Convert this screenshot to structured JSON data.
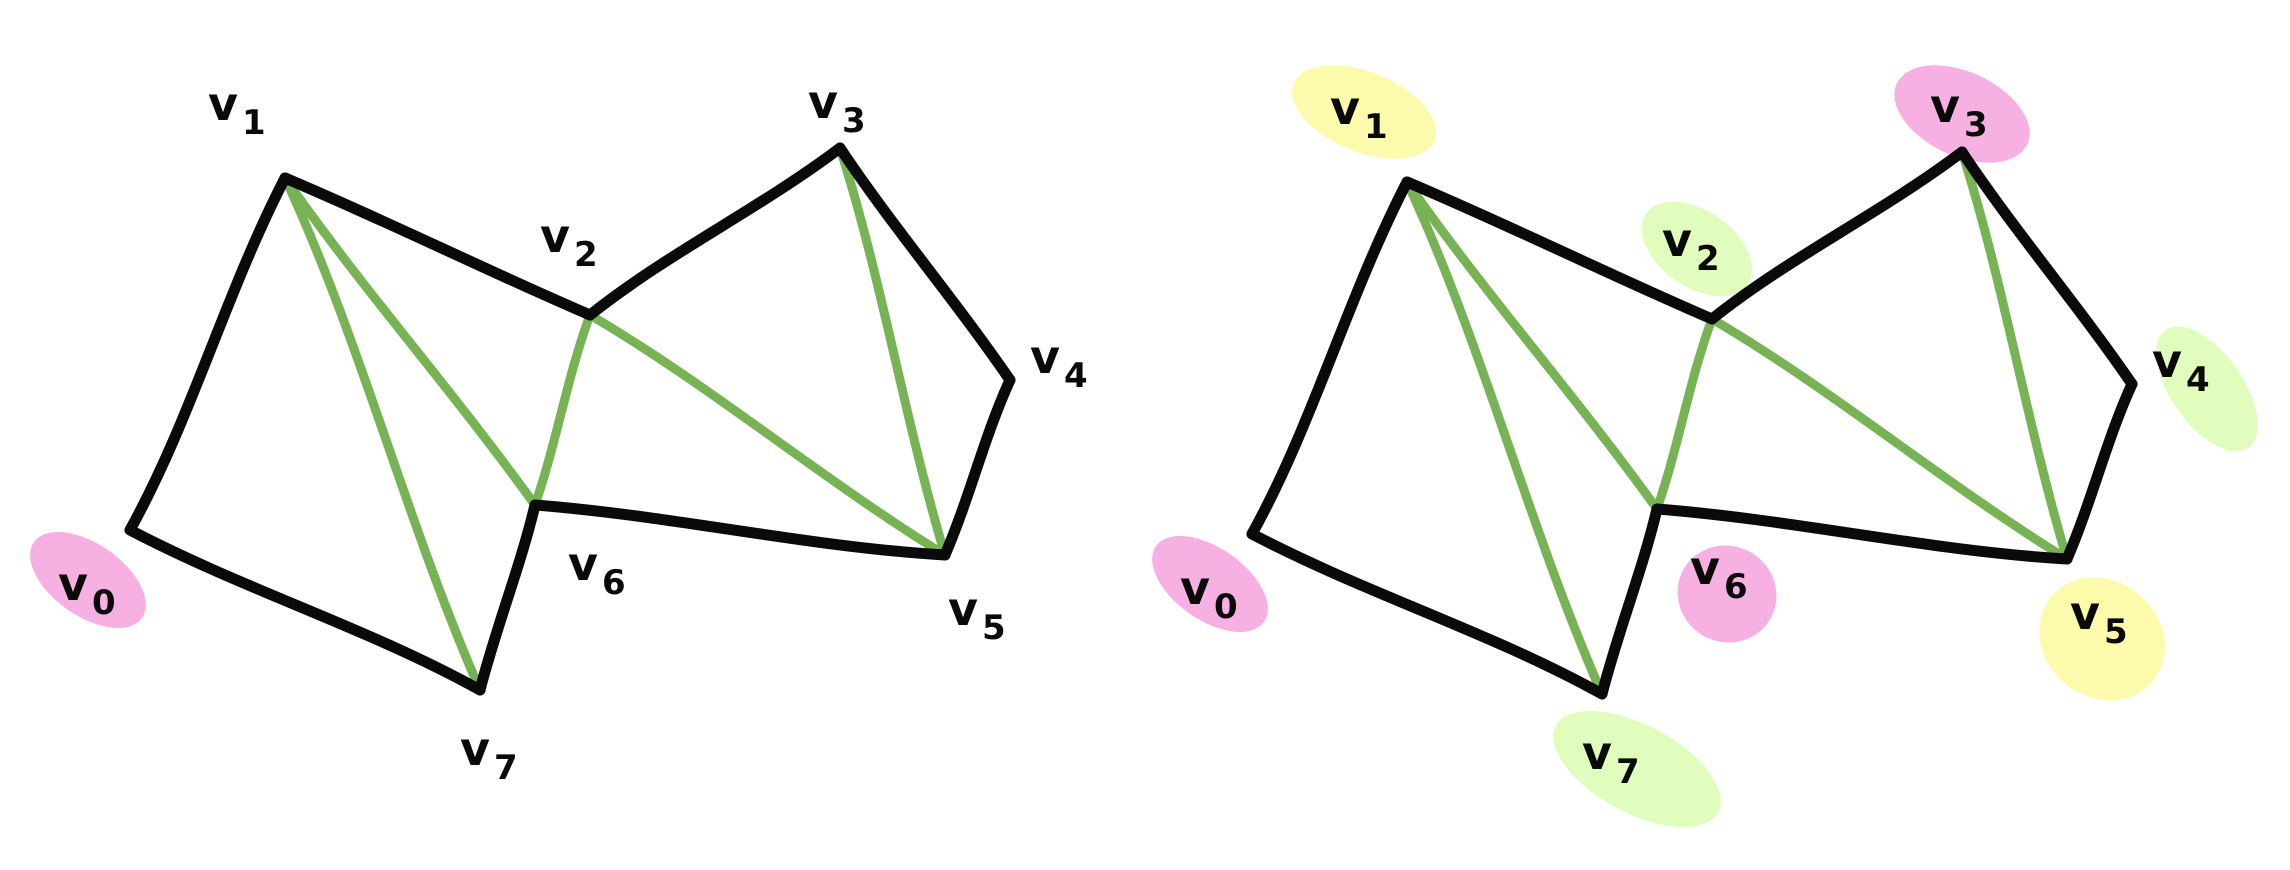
{
  "colors": {
    "outer_edge": "#0a0a0a",
    "inner_edge": "#77b255",
    "highlight_pink": "#f4a3dd",
    "highlight_yellow": "#fbfa9c",
    "highlight_green": "#dcfdb2"
  },
  "graphs": [
    {
      "id": "uncolored",
      "vertices": [
        {
          "letter": "v",
          "sub": "0",
          "highlight": "pink"
        },
        {
          "letter": "v",
          "sub": "1",
          "highlight": "none"
        },
        {
          "letter": "v",
          "sub": "2",
          "highlight": "none"
        },
        {
          "letter": "v",
          "sub": "3",
          "highlight": "none"
        },
        {
          "letter": "v",
          "sub": "4",
          "highlight": "none"
        },
        {
          "letter": "v",
          "sub": "5",
          "highlight": "none"
        },
        {
          "letter": "v",
          "sub": "6",
          "highlight": "none"
        },
        {
          "letter": "v",
          "sub": "7",
          "highlight": "none"
        }
      ]
    },
    {
      "id": "colored",
      "vertices": [
        {
          "letter": "v",
          "sub": "0",
          "highlight": "pink"
        },
        {
          "letter": "v",
          "sub": "1",
          "highlight": "yellow"
        },
        {
          "letter": "v",
          "sub": "2",
          "highlight": "green"
        },
        {
          "letter": "v",
          "sub": "3",
          "highlight": "pink"
        },
        {
          "letter": "v",
          "sub": "4",
          "highlight": "green"
        },
        {
          "letter": "v",
          "sub": "5",
          "highlight": "yellow"
        },
        {
          "letter": "v",
          "sub": "6",
          "highlight": "pink"
        },
        {
          "letter": "v",
          "sub": "7",
          "highlight": "green"
        }
      ]
    }
  ],
  "outer_edges": [
    [
      "v0",
      "v1"
    ],
    [
      "v1",
      "v2"
    ],
    [
      "v2",
      "v3"
    ],
    [
      "v3",
      "v4"
    ],
    [
      "v4",
      "v5"
    ],
    [
      "v5",
      "v6"
    ],
    [
      "v6",
      "v7"
    ],
    [
      "v7",
      "v0"
    ]
  ],
  "inner_edges": [
    [
      "v1",
      "v7"
    ],
    [
      "v1",
      "v6"
    ],
    [
      "v2",
      "v6"
    ],
    [
      "v2",
      "v5"
    ],
    [
      "v3",
      "v5"
    ]
  ]
}
